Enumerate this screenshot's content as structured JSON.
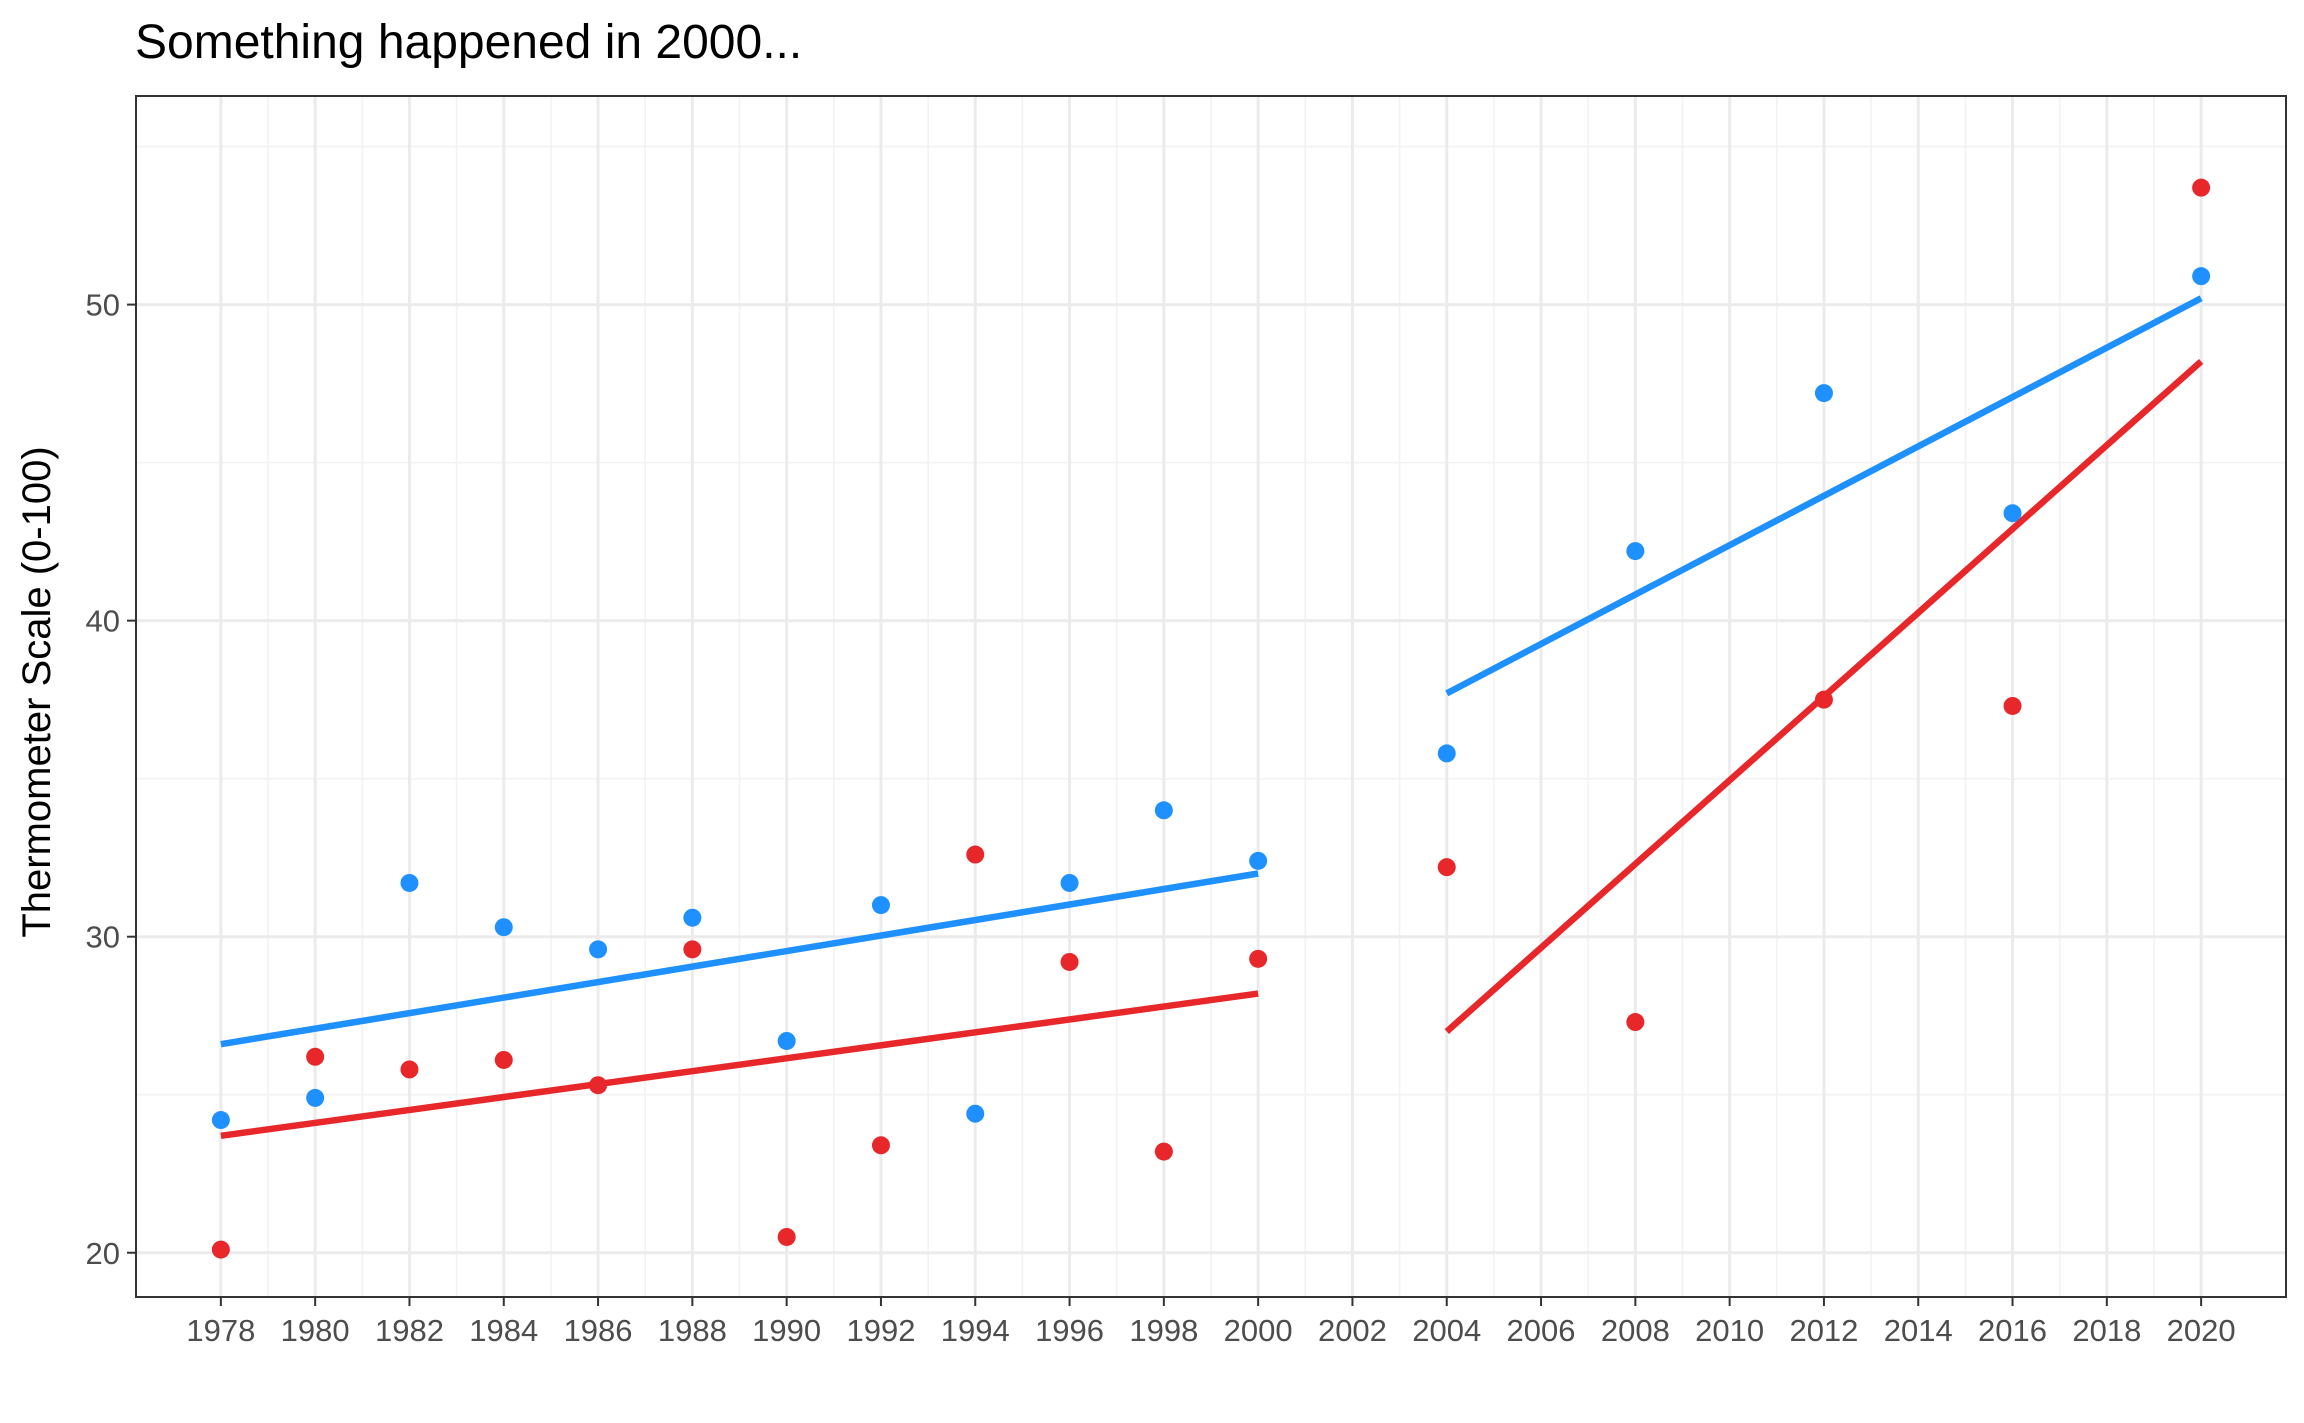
{
  "chart_data": {
    "type": "scatter",
    "title": "Something happened in 2000...",
    "xlabel": "",
    "ylabel": "Thermometer Scale (0-100)",
    "xlim": [
      1976.2,
      2021.8
    ],
    "ylim": [
      18.6,
      56.6
    ],
    "x_ticks": [
      1978,
      1980,
      1982,
      1984,
      1986,
      1988,
      1990,
      1992,
      1994,
      1996,
      1998,
      2000,
      2002,
      2004,
      2006,
      2008,
      2010,
      2012,
      2014,
      2016,
      2018,
      2020
    ],
    "y_ticks": [
      20,
      30,
      40,
      50
    ],
    "grid": true,
    "legend": "none",
    "series": [
      {
        "color": "#1E90FF",
        "points": [
          {
            "x": 1978,
            "y": 24.2
          },
          {
            "x": 1980,
            "y": 24.9
          },
          {
            "x": 1982,
            "y": 31.7
          },
          {
            "x": 1984,
            "y": 30.3
          },
          {
            "x": 1986,
            "y": 29.6
          },
          {
            "x": 1988,
            "y": 30.6
          },
          {
            "x": 1990,
            "y": 26.7
          },
          {
            "x": 1992,
            "y": 31.0
          },
          {
            "x": 1994,
            "y": 24.4
          },
          {
            "x": 1996,
            "y": 31.7
          },
          {
            "x": 1998,
            "y": 34.0
          },
          {
            "x": 2000,
            "y": 32.4
          },
          {
            "x": 2004,
            "y": 35.8
          },
          {
            "x": 2008,
            "y": 42.2
          },
          {
            "x": 2012,
            "y": 47.2
          },
          {
            "x": 2016,
            "y": 43.4
          },
          {
            "x": 2020,
            "y": 50.9
          }
        ],
        "trend_lines": [
          {
            "x": [
              1978,
              2000
            ],
            "y": [
              26.6,
              32.0
            ]
          },
          {
            "x": [
              2004,
              2020
            ],
            "y": [
              37.7,
              50.2
            ]
          }
        ]
      },
      {
        "color": "#E8272A",
        "points": [
          {
            "x": 1978,
            "y": 20.1
          },
          {
            "x": 1980,
            "y": 26.2
          },
          {
            "x": 1982,
            "y": 25.8
          },
          {
            "x": 1984,
            "y": 26.1
          },
          {
            "x": 1986,
            "y": 25.3
          },
          {
            "x": 1988,
            "y": 29.6
          },
          {
            "x": 1990,
            "y": 20.5
          },
          {
            "x": 1992,
            "y": 23.4
          },
          {
            "x": 1994,
            "y": 32.6
          },
          {
            "x": 1996,
            "y": 29.2
          },
          {
            "x": 1998,
            "y": 23.2
          },
          {
            "x": 2000,
            "y": 29.3
          },
          {
            "x": 2004,
            "y": 32.2
          },
          {
            "x": 2008,
            "y": 27.3
          },
          {
            "x": 2012,
            "y": 37.5
          },
          {
            "x": 2016,
            "y": 37.3
          },
          {
            "x": 2020,
            "y": 53.7
          }
        ],
        "trend_lines": [
          {
            "x": [
              1978,
              2000
            ],
            "y": [
              23.7,
              28.2
            ]
          },
          {
            "x": [
              2004,
              2020
            ],
            "y": [
              27.0,
              48.2
            ]
          }
        ]
      }
    ]
  }
}
